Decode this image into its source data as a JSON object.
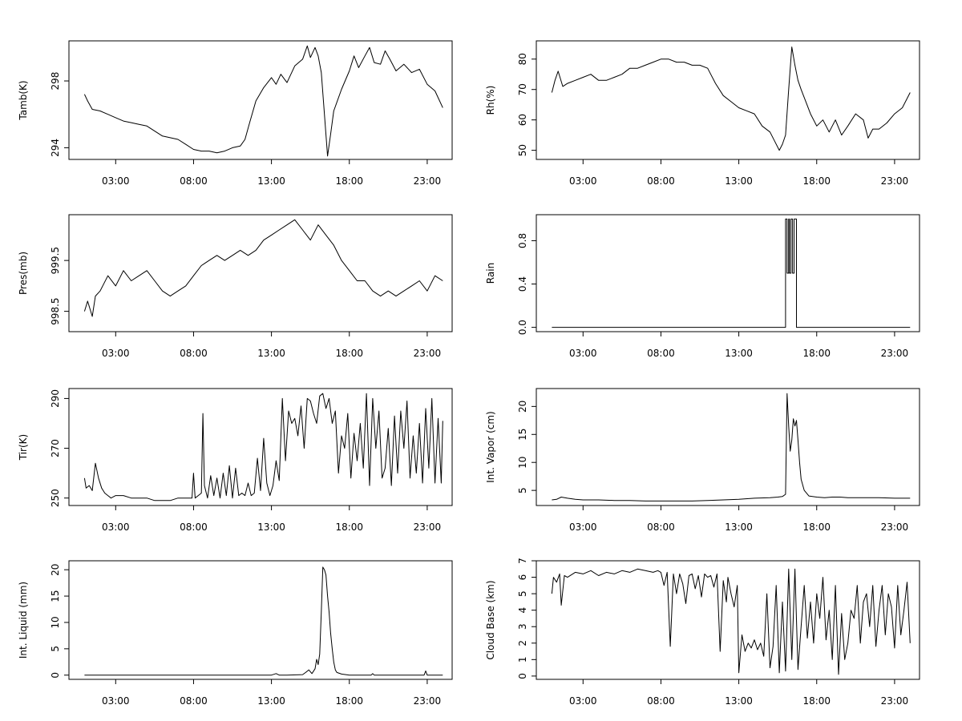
{
  "chart_data": [
    {
      "type": "line",
      "ylabel": "Tamb(K)",
      "xticks": [
        "03:00",
        "08:00",
        "13:00",
        "18:00",
        "23:00"
      ],
      "xlim": [
        0,
        24.6
      ],
      "yticks": [
        294,
        298
      ],
      "ylim": [
        293.3,
        300.4
      ],
      "series": [
        {
          "x": [
            1.0,
            1.2,
            1.5,
            2.0,
            2.5,
            3.0,
            3.5,
            4.0,
            4.5,
            5.0,
            5.5,
            6.0,
            6.5,
            7.0,
            7.5,
            8.0,
            8.5,
            9.0,
            9.5,
            10.0,
            10.5,
            11.0,
            11.3,
            11.6,
            12.0,
            12.5,
            13.0,
            13.3,
            13.6,
            14.0,
            14.5,
            15.0,
            15.3,
            15.5,
            15.8,
            16.0,
            16.2,
            16.4,
            16.6,
            16.8,
            17.0,
            17.5,
            18.0,
            18.3,
            18.6,
            19.0,
            19.3,
            19.6,
            20.0,
            20.3,
            20.6,
            21.0,
            21.5,
            22.0,
            22.5,
            23.0,
            23.5,
            24.0
          ],
          "y": [
            297.2,
            296.8,
            296.3,
            296.2,
            296.0,
            295.8,
            295.6,
            295.5,
            295.4,
            295.3,
            295.0,
            294.7,
            294.6,
            294.5,
            294.2,
            293.9,
            293.8,
            293.8,
            293.7,
            293.8,
            294.0,
            294.1,
            294.5,
            295.5,
            296.8,
            297.6,
            298.2,
            297.8,
            298.4,
            297.9,
            298.9,
            299.3,
            300.1,
            299.4,
            300.0,
            299.5,
            298.5,
            296.0,
            293.5,
            294.8,
            296.2,
            297.5,
            298.6,
            299.5,
            298.8,
            299.5,
            300.0,
            299.1,
            299.0,
            299.8,
            299.3,
            298.6,
            299.0,
            298.5,
            298.7,
            297.8,
            297.4,
            296.4
          ]
        }
      ]
    },
    {
      "type": "line",
      "ylabel": "Rh(%)",
      "xticks": [
        "03:00",
        "08:00",
        "13:00",
        "18:00",
        "23:00"
      ],
      "xlim": [
        0,
        24.6
      ],
      "yticks": [
        50,
        60,
        70,
        80
      ],
      "ylim": [
        47,
        86
      ],
      "series": [
        {
          "x": [
            1.0,
            1.2,
            1.4,
            1.7,
            2.0,
            2.5,
            3.0,
            3.5,
            4.0,
            4.5,
            5.0,
            5.5,
            6.0,
            6.5,
            7.0,
            7.5,
            8.0,
            8.5,
            9.0,
            9.5,
            10.0,
            10.5,
            11.0,
            11.5,
            12.0,
            12.5,
            13.0,
            13.5,
            14.0,
            14.5,
            15.0,
            15.3,
            15.6,
            15.8,
            16.0,
            16.2,
            16.4,
            16.6,
            16.8,
            17.0,
            17.3,
            17.6,
            18.0,
            18.4,
            18.8,
            19.2,
            19.6,
            20.0,
            20.5,
            21.0,
            21.3,
            21.6,
            22.0,
            22.5,
            23.0,
            23.5,
            24.0
          ],
          "y": [
            69,
            73,
            76,
            71,
            72,
            73,
            74,
            75,
            73,
            73,
            74,
            75,
            77,
            77,
            78,
            79,
            80,
            80,
            79,
            79,
            78,
            78,
            77,
            72,
            68,
            66,
            64,
            63,
            62,
            58,
            56,
            53,
            50,
            52,
            55,
            70,
            84,
            78,
            73,
            70,
            66,
            62,
            58,
            60,
            56,
            60,
            55,
            58,
            62,
            60,
            54,
            57,
            57,
            59,
            62,
            64,
            69
          ]
        }
      ]
    },
    {
      "type": "line",
      "ylabel": "Pres(mb)",
      "xticks": [
        "03:00",
        "08:00",
        "13:00",
        "18:00",
        "23:00"
      ],
      "xlim": [
        0,
        24.6
      ],
      "yticks": [
        998.5,
        999.5
      ],
      "yticklabels": [
        "998.5",
        "999.5"
      ],
      "ylim": [
        998.1,
        1000.4
      ],
      "series": [
        {
          "x": [
            1.0,
            1.2,
            1.5,
            1.7,
            2.0,
            2.5,
            3.0,
            3.5,
            4.0,
            4.5,
            5.0,
            5.5,
            6.0,
            6.5,
            7.0,
            7.5,
            8.0,
            8.5,
            9.0,
            9.5,
            10.0,
            10.5,
            11.0,
            11.5,
            12.0,
            12.5,
            13.0,
            13.5,
            14.0,
            14.5,
            15.0,
            15.5,
            16.0,
            16.5,
            17.0,
            17.5,
            18.0,
            18.5,
            19.0,
            19.5,
            20.0,
            20.5,
            21.0,
            21.5,
            22.0,
            22.5,
            23.0,
            23.5,
            24.0
          ],
          "y": [
            998.5,
            998.7,
            998.4,
            998.8,
            998.9,
            999.2,
            999.0,
            999.3,
            999.1,
            999.2,
            999.3,
            999.1,
            998.9,
            998.8,
            998.9,
            999.0,
            999.2,
            999.4,
            999.5,
            999.6,
            999.5,
            999.6,
            999.7,
            999.6,
            999.7,
            999.9,
            1000.0,
            1000.1,
            1000.2,
            1000.3,
            1000.1,
            999.9,
            1000.2,
            1000.0,
            999.8,
            999.5,
            999.3,
            999.1,
            999.1,
            998.9,
            998.8,
            998.9,
            998.8,
            998.9,
            999.0,
            999.1,
            998.9,
            999.2,
            999.1
          ]
        }
      ]
    },
    {
      "type": "line",
      "ylabel": "Rain",
      "xticks": [
        "03:00",
        "08:00",
        "13:00",
        "18:00",
        "23:00"
      ],
      "xlim": [
        0,
        24.6
      ],
      "yticks": [
        0.0,
        0.4,
        0.8
      ],
      "yticklabels": [
        "0.0",
        "0.4",
        "0.8"
      ],
      "ylim": [
        -0.04,
        1.04
      ],
      "series": [
        {
          "x": [
            1.0,
            16.0,
            16.0,
            16.1,
            16.1,
            16.2,
            16.2,
            16.25,
            16.25,
            16.35,
            16.35,
            16.45,
            16.45,
            16.55,
            16.55,
            16.7,
            16.7,
            24.0
          ],
          "y": [
            0,
            0,
            1,
            1,
            0.5,
            0.5,
            1,
            1,
            0.5,
            0.5,
            1,
            1,
            0.5,
            0.5,
            1,
            1,
            0,
            0
          ]
        }
      ]
    },
    {
      "type": "line",
      "ylabel": "Tir(K)",
      "xticks": [
        "03:00",
        "08:00",
        "13:00",
        "18:00",
        "23:00"
      ],
      "xlim": [
        0,
        24.6
      ],
      "yticks": [
        250,
        270,
        290
      ],
      "ylim": [
        247,
        294
      ],
      "series": [
        {
          "x": [
            1.0,
            1.1,
            1.3,
            1.5,
            1.7,
            1.9,
            2.1,
            2.3,
            2.5,
            2.7,
            3.0,
            3.5,
            4.0,
            4.5,
            5.0,
            5.5,
            6.0,
            6.5,
            7.0,
            7.5,
            7.9,
            8.0,
            8.1,
            8.3,
            8.5,
            8.6,
            8.7,
            8.9,
            9.1,
            9.3,
            9.5,
            9.7,
            9.9,
            10.1,
            10.3,
            10.5,
            10.7,
            10.9,
            11.1,
            11.3,
            11.5,
            11.7,
            11.9,
            12.1,
            12.3,
            12.5,
            12.7,
            12.9,
            13.1,
            13.3,
            13.5,
            13.7,
            13.9,
            14.1,
            14.3,
            14.5,
            14.7,
            14.9,
            15.1,
            15.3,
            15.5,
            15.7,
            15.9,
            16.1,
            16.3,
            16.5,
            16.7,
            16.9,
            17.1,
            17.3,
            17.5,
            17.7,
            17.9,
            18.1,
            18.3,
            18.5,
            18.7,
            18.9,
            19.1,
            19.3,
            19.5,
            19.7,
            19.9,
            20.1,
            20.3,
            20.5,
            20.7,
            20.9,
            21.1,
            21.3,
            21.5,
            21.7,
            21.9,
            22.1,
            22.3,
            22.5,
            22.7,
            22.9,
            23.1,
            23.3,
            23.5,
            23.7,
            23.9,
            24.0
          ],
          "y": [
            258,
            254,
            255,
            253,
            264,
            258,
            254,
            252,
            251,
            250,
            251,
            251,
            250,
            250,
            250,
            249,
            249,
            249,
            250,
            250,
            250,
            260,
            250,
            251,
            252,
            284,
            255,
            250,
            259,
            251,
            258,
            250,
            260,
            251,
            263,
            250,
            262,
            251,
            252,
            251,
            256,
            251,
            252,
            266,
            253,
            274,
            256,
            251,
            255,
            265,
            257,
            290,
            265,
            285,
            280,
            282,
            275,
            287,
            270,
            290,
            289,
            284,
            280,
            291,
            292,
            286,
            290,
            280,
            285,
            260,
            275,
            270,
            284,
            258,
            276,
            265,
            280,
            262,
            292,
            255,
            290,
            270,
            285,
            258,
            262,
            278,
            255,
            283,
            260,
            285,
            270,
            289,
            258,
            275,
            260,
            280,
            256,
            286,
            262,
            290,
            256,
            282,
            256,
            281
          ]
        }
      ]
    },
    {
      "type": "line",
      "ylabel": "Int. Vapor (cm)",
      "xticks": [
        "03:00",
        "08:00",
        "13:00",
        "18:00",
        "23:00"
      ],
      "xlim": [
        0,
        24.6
      ],
      "yticks": [
        5,
        10,
        15,
        20
      ],
      "ylim": [
        2.3,
        23.2
      ],
      "series": [
        {
          "x": [
            1.0,
            1.3,
            1.6,
            2.0,
            2.5,
            3.0,
            4.0,
            5.0,
            6.0,
            7.0,
            8.0,
            9.0,
            10.0,
            11.0,
            12.0,
            13.0,
            14.0,
            15.0,
            15.5,
            15.8,
            16.0,
            16.1,
            16.2,
            16.3,
            16.4,
            16.5,
            16.6,
            16.7,
            16.8,
            16.9,
            17.0,
            17.2,
            17.5,
            18.0,
            18.5,
            19.0,
            19.5,
            20.0,
            21.0,
            22.0,
            23.0,
            24.0
          ],
          "y": [
            3.3,
            3.4,
            3.8,
            3.6,
            3.4,
            3.3,
            3.3,
            3.2,
            3.2,
            3.1,
            3.1,
            3.1,
            3.1,
            3.2,
            3.3,
            3.4,
            3.6,
            3.7,
            3.8,
            3.9,
            4.3,
            22.3,
            16.5,
            12.0,
            14.0,
            17.8,
            16.5,
            17.5,
            14.0,
            10.0,
            7.0,
            5.0,
            4.0,
            3.8,
            3.7,
            3.8,
            3.8,
            3.7,
            3.7,
            3.7,
            3.6,
            3.6
          ]
        }
      ]
    },
    {
      "type": "line",
      "ylabel": "Int. Liquid (mm)",
      "xticks": [
        "03:00",
        "08:00",
        "13:00",
        "18:00",
        "23:00"
      ],
      "xlim": [
        0,
        24.6
      ],
      "yticks": [
        0,
        5,
        10,
        15,
        20
      ],
      "ylim": [
        -0.8,
        21.7
      ],
      "series": [
        {
          "x": [
            1.0,
            13.0,
            13.3,
            13.5,
            14.0,
            15.0,
            15.2,
            15.4,
            15.6,
            15.8,
            15.9,
            16.0,
            16.1,
            16.2,
            16.3,
            16.4,
            16.5,
            16.6,
            16.7,
            16.8,
            16.9,
            17.0,
            17.1,
            17.2,
            17.5,
            18.0,
            19.4,
            19.5,
            19.6,
            22.8,
            22.9,
            23.0,
            24.0
          ],
          "y": [
            0,
            0,
            0.3,
            0,
            0,
            0.1,
            0.5,
            1.0,
            0.3,
            1.2,
            3.0,
            2.0,
            4.0,
            12.0,
            20.5,
            20.0,
            19.0,
            15.0,
            12.0,
            8.0,
            5.0,
            2.5,
            1.0,
            0.5,
            0.2,
            0,
            0,
            0.3,
            0,
            0,
            0.8,
            0,
            0
          ]
        }
      ]
    },
    {
      "type": "line",
      "ylabel": "Cloud Base (km)",
      "xticks": [
        "03:00",
        "08:00",
        "13:00",
        "18:00",
        "23:00"
      ],
      "xlim": [
        0,
        24.6
      ],
      "yticks": [
        0,
        1,
        2,
        3,
        4,
        5,
        6,
        7
      ],
      "ylim": [
        -0.2,
        7.0
      ],
      "series": [
        {
          "x": [
            1.0,
            1.1,
            1.3,
            1.5,
            1.6,
            1.8,
            2.0,
            2.5,
            3.0,
            3.5,
            4.0,
            4.5,
            5.0,
            5.5,
            6.0,
            6.5,
            7.0,
            7.5,
            7.8,
            8.0,
            8.2,
            8.4,
            8.5,
            8.6,
            8.8,
            9.0,
            9.2,
            9.4,
            9.6,
            9.8,
            10.0,
            10.2,
            10.4,
            10.6,
            10.8,
            11.0,
            11.2,
            11.4,
            11.6,
            11.8,
            12.0,
            12.2,
            12.3,
            12.5,
            12.7,
            12.9,
            13.0,
            13.2,
            13.4,
            13.6,
            13.8,
            14.0,
            14.2,
            14.4,
            14.6,
            14.8,
            15.0,
            15.2,
            15.4,
            15.6,
            15.8,
            16.0,
            16.2,
            16.4,
            16.6,
            16.8,
            17.0,
            17.2,
            17.4,
            17.6,
            17.8,
            18.0,
            18.2,
            18.4,
            18.6,
            18.8,
            19.0,
            19.2,
            19.4,
            19.6,
            19.8,
            20.0,
            20.2,
            20.4,
            20.6,
            20.8,
            21.0,
            21.2,
            21.4,
            21.6,
            21.8,
            22.0,
            22.2,
            22.4,
            22.6,
            22.8,
            23.0,
            23.2,
            23.4,
            23.6,
            23.8,
            24.0
          ],
          "y": [
            5.0,
            6.0,
            5.7,
            6.2,
            4.3,
            6.1,
            6.0,
            6.3,
            6.2,
            6.4,
            6.1,
            6.3,
            6.2,
            6.4,
            6.3,
            6.5,
            6.4,
            6.3,
            6.4,
            6.3,
            5.5,
            6.3,
            4.0,
            1.8,
            6.2,
            5.0,
            6.2,
            5.6,
            4.4,
            6.1,
            6.2,
            5.3,
            6.1,
            4.8,
            6.2,
            6.0,
            6.1,
            5.4,
            6.2,
            1.5,
            5.8,
            4.5,
            6.0,
            5.0,
            4.2,
            5.5,
            0.2,
            2.5,
            1.5,
            2.0,
            1.7,
            2.2,
            1.6,
            2.0,
            1.2,
            5.0,
            0.5,
            1.8,
            5.5,
            0.2,
            4.5,
            0.3,
            6.5,
            1.0,
            6.5,
            0.4,
            3.0,
            5.5,
            2.3,
            4.5,
            2.0,
            5.0,
            3.5,
            6.0,
            2.2,
            4.0,
            1.0,
            5.5,
            0.1,
            3.8,
            1.0,
            2.0,
            4.0,
            3.5,
            5.5,
            2.0,
            4.5,
            5.0,
            3.0,
            5.5,
            1.8,
            4.0,
            5.5,
            2.5,
            5.0,
            4.2,
            1.7,
            5.5,
            2.5,
            4.0,
            5.7,
            2.0
          ]
        }
      ]
    }
  ]
}
